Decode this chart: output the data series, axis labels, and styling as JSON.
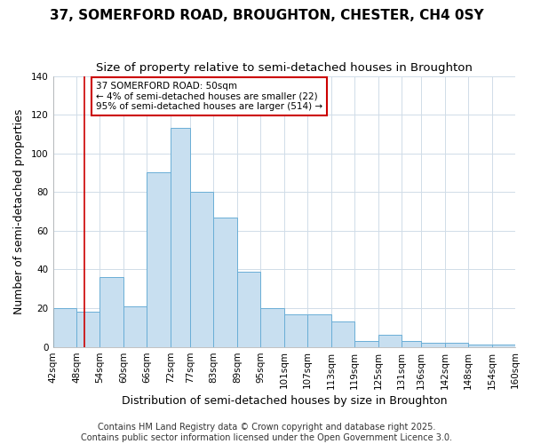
{
  "title": "37, SOMERFORD ROAD, BROUGHTON, CHESTER, CH4 0SY",
  "subtitle": "Size of property relative to semi-detached houses in Broughton",
  "xlabel": "Distribution of semi-detached houses by size in Broughton",
  "ylabel": "Number of semi-detached properties",
  "bin_edges": [
    42,
    48,
    54,
    60,
    66,
    72,
    77,
    83,
    89,
    95,
    101,
    107,
    113,
    119,
    125,
    131,
    136,
    142,
    148,
    154,
    160
  ],
  "bar_heights": [
    20,
    18,
    36,
    21,
    90,
    113,
    80,
    67,
    39,
    20,
    17,
    17,
    13,
    3,
    6,
    3,
    2,
    2,
    1,
    1
  ],
  "bar_color": "#c8dff0",
  "bar_edge_color": "#6aaed6",
  "property_size": 50,
  "red_line_color": "#cc0000",
  "annotation_line1": "37 SOMERFORD ROAD: 50sqm",
  "annotation_line2": "← 4% of semi-detached houses are smaller (22)",
  "annotation_line3": "95% of semi-detached houses are larger (514) →",
  "annotation_box_color": "#ffffff",
  "annotation_border_color": "#cc0000",
  "ylim": [
    0,
    140
  ],
  "yticks": [
    0,
    20,
    40,
    60,
    80,
    100,
    120,
    140
  ],
  "footer_text": "Contains HM Land Registry data © Crown copyright and database right 2025.\nContains public sector information licensed under the Open Government Licence 3.0.",
  "bg_color": "#ffffff",
  "plot_bg_color": "#ffffff",
  "grid_color": "#d0dce8",
  "title_fontsize": 11,
  "subtitle_fontsize": 9.5,
  "tick_fontsize": 7.5,
  "label_fontsize": 9,
  "footer_fontsize": 7
}
